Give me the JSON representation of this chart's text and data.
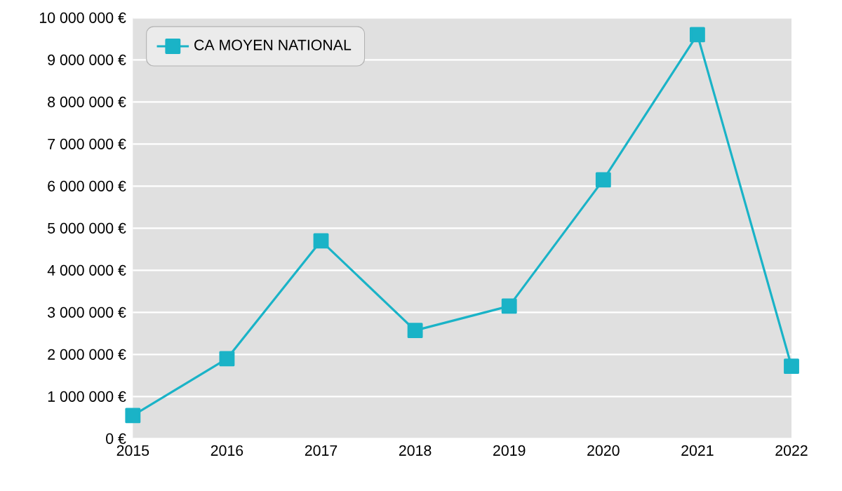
{
  "chart_data": {
    "type": "line",
    "x": [
      2015,
      2016,
      2017,
      2018,
      2019,
      2020,
      2021,
      2022
    ],
    "series": [
      {
        "name": "CA MOYEN NATIONAL",
        "color": "#1ab3c7",
        "values": [
          550000,
          1900000,
          4700000,
          2570000,
          3150000,
          6150000,
          9600000,
          1720000
        ]
      }
    ],
    "xlim": [
      2015,
      2022
    ],
    "xticks": [
      2015,
      2016,
      2017,
      2018,
      2019,
      2020,
      2021,
      2022
    ],
    "ylim": [
      0,
      10000000
    ],
    "yticks": [
      {
        "value": 0,
        "label": "0 €"
      },
      {
        "value": 1000000,
        "label": "1 000 000 €"
      },
      {
        "value": 2000000,
        "label": "2 000 000 €"
      },
      {
        "value": 3000000,
        "label": "3 000 000 €"
      },
      {
        "value": 4000000,
        "label": "4 000 000 €"
      },
      {
        "value": 5000000,
        "label": "5 000 000 €"
      },
      {
        "value": 6000000,
        "label": "6 000 000 €"
      },
      {
        "value": 7000000,
        "label": "7 000 000 €"
      },
      {
        "value": 8000000,
        "label": "8 000 000 €"
      },
      {
        "value": 9000000,
        "label": "9 000 000 €"
      },
      {
        "value": 10000000,
        "label": "10 000 000 €"
      }
    ],
    "grid": "y",
    "legend": "top left",
    "marker": "square",
    "line_style": "solid"
  }
}
